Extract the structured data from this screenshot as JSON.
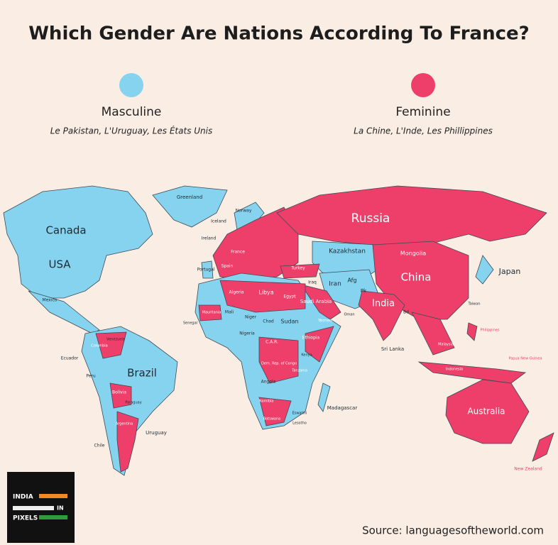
{
  "header": {
    "title": "Which Gender Are Nations According To  France?"
  },
  "legend": [
    {
      "name": "Masculine",
      "examples": "Le Pakistan, L'Uruguay, Les États Unis",
      "color": "#86d3ef"
    },
    {
      "name": "Feminine",
      "examples": "La Chine, L'Inde, Les Phillippines",
      "color": "#ee3f6a"
    }
  ],
  "map": {
    "labels": [
      "Canada",
      "USA",
      "Greenland",
      "Iceland",
      "Norway",
      "Ireland",
      "Mexico",
      "Portugal",
      "Spain",
      "France",
      "Russia",
      "Kazakhstan",
      "Mongolia",
      "China",
      "Japan",
      "Turkey",
      "Iraq",
      "Iran",
      "Afg",
      "Pk",
      "Algeria",
      "Libya",
      "Egypt",
      "Saudi Arabia",
      "Yemen",
      "Oman",
      "India",
      "Bd",
      "Sri Lanka",
      "Taiwan",
      "Philippines",
      "Malaysia",
      "Indonesia",
      "Papua New Guinea",
      "Australia",
      "New Zealand",
      "Mauritania",
      "Mali",
      "Niger",
      "Chad",
      "Sudan",
      "Senegal",
      "Nigeria",
      "C.A.R.",
      "Ethiopia",
      "Kenya",
      "Dem. Rep. of Congo",
      "Tanzania",
      "Angola",
      "Namibia",
      "Botswana",
      "Eswatini",
      "Lesotho",
      "Madagascar",
      "Ecuador",
      "Colombia",
      "Venezuela",
      "Peru",
      "Brazil",
      "Bolivia",
      "Paraguay",
      "Argentina",
      "Chile",
      "Uruguay"
    ]
  },
  "logo": {
    "line1": "INDIA",
    "line2": "IN",
    "line3": "PIXELS"
  },
  "footer": {
    "source": "Source: languagesoftheworld.com"
  }
}
